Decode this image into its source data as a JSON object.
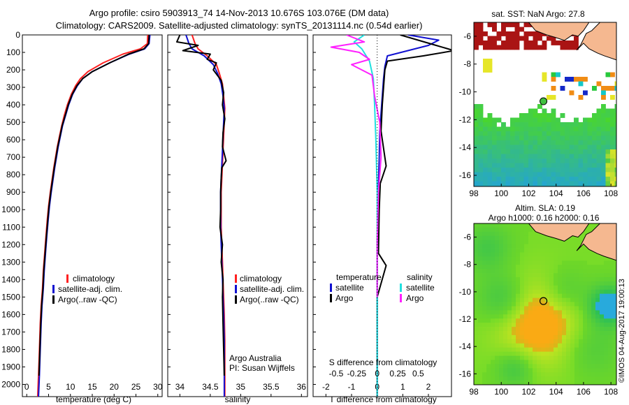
{
  "header": {
    "title_line1": "Argo profile: csiro 5903913_74 14-Nov-2013 10.676S 103.076E (DM data)",
    "title_line2": "Climatology: CARS2009. Satellite-adjusted climatology: synTS_20131114.nc (0.54d earlier)"
  },
  "colors": {
    "climatology": "#ff2020",
    "satellite": "#1010d0",
    "argo": "#000000",
    "satellite_s": "#20e0e0",
    "argo_s": "#ff20ff",
    "land": "#f5b890"
  },
  "chart_data": [
    {
      "type": "line",
      "id": "temperature",
      "xlabel": "temperature (deg C)",
      "xlim": [
        -1,
        31
      ],
      "xticks": [
        0,
        5,
        10,
        15,
        20,
        25,
        30
      ],
      "ylim": [
        0,
        2070
      ],
      "yticks": [
        0,
        100,
        200,
        300,
        400,
        500,
        600,
        700,
        800,
        900,
        1000,
        1100,
        1200,
        1300,
        1400,
        1500,
        1600,
        1700,
        1800,
        1900,
        2000
      ],
      "legend": [
        "climatology",
        "satellite-adj. clim.",
        "Argo(..raw -QC)"
      ],
      "series": [
        {
          "key": "climatology",
          "x": [
            27.7,
            27.6,
            26.0,
            22.0,
            17.5,
            14.0,
            12.3,
            11.2,
            10.2,
            9.3,
            8.6,
            8.0,
            7.5,
            7.0,
            6.6,
            6.2,
            5.8,
            5.4,
            5.0,
            4.7,
            4.4,
            4.1,
            3.8,
            3.6,
            3.3,
            3.1,
            2.9,
            2.7,
            2.5
          ],
          "y": [
            0,
            50,
            80,
            110,
            160,
            210,
            250,
            290,
            340,
            400,
            460,
            520,
            580,
            640,
            700,
            760,
            830,
            900,
            980,
            1060,
            1150,
            1250,
            1350,
            1450,
            1550,
            1650,
            1800,
            1950,
            2070
          ]
        },
        {
          "key": "satellite",
          "x": [
            28.2,
            28.0,
            27.0,
            23.5,
            19.0,
            15.0,
            12.8,
            11.6,
            10.5,
            9.6,
            8.9,
            8.2,
            7.7,
            7.2,
            6.8,
            6.4,
            6.0,
            5.6,
            5.2,
            4.9,
            4.6,
            4.3,
            4.0,
            3.8,
            3.5,
            3.3,
            3.1,
            2.9,
            2.7
          ],
          "y": [
            0,
            50,
            80,
            110,
            160,
            210,
            250,
            290,
            340,
            400,
            460,
            520,
            580,
            640,
            700,
            760,
            830,
            900,
            980,
            1060,
            1150,
            1250,
            1350,
            1450,
            1550,
            1650,
            1800,
            1950,
            2070
          ]
        },
        {
          "key": "argo",
          "x": [
            28.0,
            27.9,
            26.8,
            23.3,
            19.0,
            15.0,
            12.8,
            11.5,
            10.4,
            9.5,
            8.8,
            8.1,
            7.6,
            7.1,
            6.7,
            6.3,
            5.9,
            5.5,
            5.1,
            4.8,
            4.5,
            4.2,
            3.9,
            3.7,
            3.4,
            3.2,
            3.0,
            2.8
          ],
          "y": [
            0,
            50,
            80,
            110,
            160,
            210,
            250,
            290,
            340,
            400,
            460,
            520,
            580,
            640,
            700,
            760,
            830,
            900,
            980,
            1060,
            1150,
            1250,
            1350,
            1450,
            1550,
            1650,
            1800,
            1950
          ]
        }
      ]
    },
    {
      "type": "line",
      "id": "salinity",
      "xlabel": "salinity",
      "xlim": [
        33.8,
        36.1
      ],
      "xticks": [
        34,
        34.5,
        35,
        35.5,
        36
      ],
      "ylim": [
        0,
        2070
      ],
      "legend": [
        "climatology",
        "satellite-adj. clim.",
        "Argo(..raw -QC)"
      ],
      "footer_line1": "Argo Australia",
      "footer_line2": "PI: Susan Wijffels",
      "series": [
        {
          "key": "climatology",
          "x": [
            34.2,
            34.25,
            34.3,
            34.45,
            34.6,
            34.65,
            34.7,
            34.72,
            34.74,
            34.73,
            34.72,
            34.71,
            34.7,
            34.69,
            34.68,
            34.68,
            34.68,
            34.69,
            34.7,
            34.71,
            34.72,
            34.73,
            34.74,
            34.74,
            34.74
          ],
          "y": [
            0,
            50,
            80,
            120,
            170,
            220,
            280,
            350,
            420,
            500,
            580,
            660,
            740,
            820,
            900,
            1000,
            1100,
            1200,
            1300,
            1400,
            1500,
            1600,
            1750,
            1900,
            2070
          ]
        },
        {
          "key": "satellite",
          "x": [
            34.1,
            34.15,
            34.2,
            34.4,
            34.55,
            34.62,
            34.68,
            34.71,
            34.73,
            34.72,
            34.71,
            34.7,
            34.69,
            34.68,
            34.67,
            34.67,
            34.67,
            34.68,
            34.69,
            34.7,
            34.71,
            34.72,
            34.73,
            34.73,
            34.73
          ],
          "y": [
            0,
            50,
            80,
            120,
            170,
            220,
            280,
            350,
            420,
            500,
            580,
            660,
            740,
            820,
            900,
            1000,
            1100,
            1200,
            1300,
            1400,
            1500,
            1600,
            1750,
            1900,
            2070
          ]
        },
        {
          "key": "argo",
          "x": [
            34.0,
            33.95,
            34.3,
            34.05,
            34.5,
            34.45,
            34.6,
            34.55,
            34.68,
            34.72,
            34.7,
            34.74,
            34.71,
            34.7,
            34.76,
            34.69,
            34.68,
            34.67,
            34.67,
            34.66,
            34.7,
            34.68,
            34.71,
            34.7,
            34.71,
            34.72,
            34.73
          ],
          "y": [
            0,
            40,
            60,
            90,
            110,
            140,
            160,
            200,
            260,
            330,
            400,
            480,
            560,
            640,
            720,
            760,
            820,
            900,
            1000,
            1100,
            1200,
            1300,
            1400,
            1500,
            1650,
            1800,
            1950
          ]
        }
      ]
    },
    {
      "type": "line",
      "id": "difference",
      "xlabel": "T difference from climatology",
      "xlabel_top": "S difference from climatology",
      "xlim": [
        -2.5,
        2.9
      ],
      "xticks": [
        -2,
        -1,
        0,
        1,
        2
      ],
      "s_ticks": [
        {
          "label": "-0.5",
          "x": -1.6
        },
        {
          "label": "-0.25",
          "x": -0.8
        },
        {
          "label": "0",
          "x": 0
        },
        {
          "label": "0.25",
          "x": 0.8
        },
        {
          "label": "0.5",
          "x": 1.6
        }
      ],
      "ylim": [
        0,
        2070
      ],
      "legend_t_title": "temperature",
      "legend_s_title": "salinity",
      "legend_t": [
        "satellite",
        "Argo"
      ],
      "legend_s": [
        "satellite",
        "Argo"
      ],
      "series": [
        {
          "key": "sat_t",
          "x": [
            1.2,
            2.4,
            2.0,
            1.2,
            0.4,
            0.3,
            0.25,
            0.2,
            0.15,
            0.1,
            0.08,
            0.05,
            0.02,
            0.0,
            0.0,
            0.0
          ],
          "y": [
            0,
            30,
            60,
            90,
            120,
            180,
            250,
            350,
            450,
            550,
            700,
            850,
            1000,
            1200,
            1500,
            2070
          ]
        },
        {
          "key": "argo_t",
          "x": [
            0.9,
            1.6,
            2.3,
            3.0,
            1.8,
            0.4,
            0.3,
            0.25,
            0.2,
            0.15,
            0.35,
            0.12,
            0.08,
            0.05,
            0.35,
            0.0,
            0.0
          ],
          "y": [
            0,
            30,
            60,
            90,
            120,
            150,
            200,
            300,
            400,
            550,
            750,
            850,
            1000,
            1250,
            1320,
            1500,
            2070
          ]
        },
        {
          "key": "sat_s",
          "x": [
            -0.5,
            -0.9,
            -0.6,
            -0.3,
            -0.15,
            -0.1,
            -0.05,
            0.0,
            0.0,
            0.0
          ],
          "y": [
            0,
            40,
            80,
            150,
            250,
            400,
            600,
            900,
            1300,
            2070
          ]
        },
        {
          "key": "argo_s",
          "x": [
            -1.2,
            -0.5,
            -1.8,
            -0.7,
            -0.3,
            -1.0,
            -0.2,
            -0.1,
            0.1,
            0.15,
            0.05,
            0.0,
            0.0
          ],
          "y": [
            0,
            40,
            70,
            100,
            140,
            170,
            230,
            350,
            500,
            700,
            900,
            1200,
            1500
          ]
        }
      ]
    },
    {
      "type": "heatmap",
      "id": "sst_map",
      "title": "sat. SST: NaN Argo: 27.8",
      "xlim": [
        98,
        108.4
      ],
      "xticks": [
        98,
        100,
        102,
        104,
        106,
        108
      ],
      "ylim": [
        -16.8,
        -5
      ],
      "yticks": [
        -6,
        -8,
        -10,
        -12,
        -14,
        -16
      ],
      "argo_position": [
        103.076,
        -10.676
      ]
    },
    {
      "type": "heatmap",
      "id": "sla_map",
      "title_line1": "Altim. SLA: 0.19",
      "title_line2": "Argo h1000: 0.16 h2000: 0.16",
      "xlim": [
        98,
        108.4
      ],
      "xticks": [
        98,
        100,
        102,
        104,
        106,
        108
      ],
      "ylim": [
        -16.8,
        -5
      ],
      "yticks": [
        -6,
        -8,
        -10,
        -12,
        -14,
        -16
      ],
      "argo_position": [
        103.076,
        -10.676
      ]
    }
  ],
  "credit": "©IMOS 04-Aug-2017 19:00:13"
}
